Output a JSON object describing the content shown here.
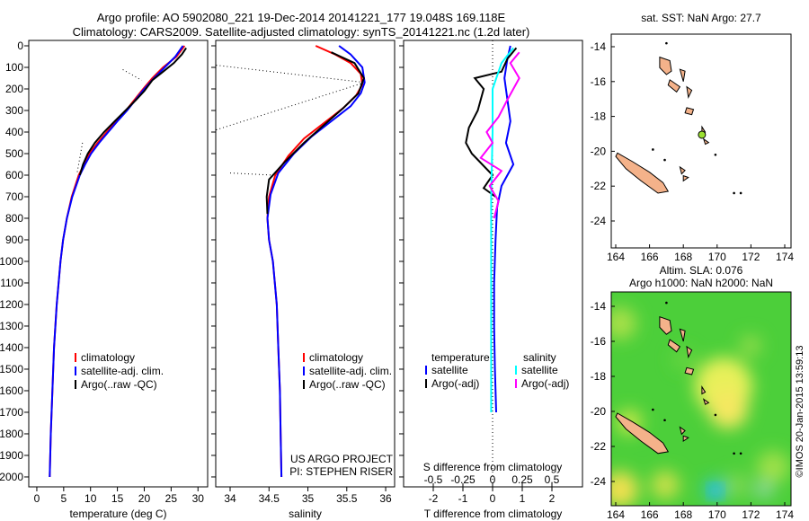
{
  "title": {
    "line1": "Argo profile: AO 5902080_221 19-Dec-2014 20141221_177 19.048S 169.118E",
    "line2": "Climatology: CARS2009. Satellite-adjusted climatology: synTS_20141221.nc (1.2d later)"
  },
  "watermark": "©IMOS 20-Jan-2015 13:59:13",
  "colors": {
    "climatology": "#ff0000",
    "satellite": "#0000ff",
    "argo": "#000000",
    "sal_satellite": "#00ffff",
    "sal_argo": "#ff00ff",
    "land": "#f4b28a",
    "sea_green": "#4ccf3a"
  },
  "chart_data": [
    {
      "id": "temperature",
      "type": "line",
      "xlabel": "temperature (deg C)",
      "xlim": [
        -1.5,
        31.8
      ],
      "ylim": [
        2046,
        -25
      ],
      "xticks": [
        0,
        5,
        10,
        15,
        20,
        25,
        30
      ],
      "yticks": [
        0,
        100,
        200,
        300,
        400,
        500,
        600,
        700,
        800,
        900,
        1000,
        1100,
        1200,
        1300,
        1400,
        1500,
        1600,
        1700,
        1800,
        1900,
        2000
      ],
      "legend": [
        "climatology",
        "satellite-adj. clim.",
        "Argo(..raw -QC)"
      ],
      "series": [
        {
          "name": "climatology",
          "color": "#ff0000",
          "points": [
            [
              27.5,
              0
            ],
            [
              26,
              50
            ],
            [
              23.5,
              100
            ],
            [
              21.5,
              150
            ],
            [
              19.8,
              200
            ],
            [
              18.2,
              250
            ],
            [
              16.6,
              300
            ],
            [
              14.8,
              350
            ],
            [
              13,
              400
            ],
            [
              11.3,
              450
            ],
            [
              9.8,
              500
            ],
            [
              8.8,
              550
            ],
            [
              7.8,
              600
            ],
            [
              6.5,
              700
            ],
            [
              5.6,
              800
            ],
            [
              4.9,
              900
            ],
            [
              4.4,
              1000
            ],
            [
              3.7,
              1200
            ],
            [
              3.2,
              1400
            ],
            [
              2.9,
              1600
            ],
            [
              2.6,
              1800
            ],
            [
              2.4,
              2000
            ]
          ]
        },
        {
          "name": "satellite-adj. clim.",
          "color": "#0000ff",
          "points": [
            [
              27.2,
              0
            ],
            [
              25.8,
              50
            ],
            [
              23.8,
              100
            ],
            [
              21.8,
              150
            ],
            [
              20,
              200
            ],
            [
              18.4,
              250
            ],
            [
              16.8,
              300
            ],
            [
              15,
              350
            ],
            [
              13.3,
              400
            ],
            [
              11.6,
              450
            ],
            [
              10.1,
              500
            ],
            [
              9,
              550
            ],
            [
              8,
              600
            ],
            [
              6.6,
              700
            ],
            [
              5.6,
              800
            ],
            [
              4.9,
              900
            ],
            [
              4.4,
              1000
            ],
            [
              3.7,
              1200
            ],
            [
              3.2,
              1400
            ],
            [
              2.9,
              1600
            ],
            [
              2.6,
              1800
            ],
            [
              2.4,
              2000
            ]
          ]
        },
        {
          "name": "Argo(..raw -QC)",
          "color": "#000000",
          "points": [
            [
              27.8,
              10
            ],
            [
              27,
              40
            ],
            [
              25.5,
              80
            ],
            [
              23.5,
              120
            ],
            [
              21.5,
              160
            ],
            [
              20,
              210
            ],
            [
              18.5,
              250
            ],
            [
              16.5,
              300
            ],
            [
              14.5,
              350
            ],
            [
              12.5,
              400
            ],
            [
              10.8,
              450
            ],
            [
              9.5,
              500
            ],
            [
              8.6,
              550
            ],
            [
              8,
              600
            ]
          ]
        }
      ]
    },
    {
      "id": "salinity",
      "type": "line",
      "xlabel": "salinity",
      "xlim": [
        33.815,
        36.115
      ],
      "ylim": [
        2046,
        -25
      ],
      "xticks": [
        34,
        34.5,
        35,
        35.5,
        36
      ],
      "legend": [
        "climatology",
        "satellite-adj. clim.",
        "Argo(..raw -QC)"
      ],
      "annotation": [
        "US ARGO PROJECT",
        "PI: STEPHEN RISER"
      ],
      "series": [
        {
          "name": "climatology",
          "color": "#ff0000",
          "points": [
            [
              35.1,
              0
            ],
            [
              35.35,
              40
            ],
            [
              35.55,
              80
            ],
            [
              35.68,
              130
            ],
            [
              35.7,
              180
            ],
            [
              35.62,
              230
            ],
            [
              35.45,
              290
            ],
            [
              35.2,
              360
            ],
            [
              34.95,
              430
            ],
            [
              34.75,
              510
            ],
            [
              34.58,
              600
            ],
            [
              34.5,
              700
            ],
            [
              34.48,
              800
            ],
            [
              34.5,
              900
            ],
            [
              34.55,
              1000
            ],
            [
              34.6,
              1200
            ],
            [
              34.62,
              1400
            ],
            [
              34.64,
              1600
            ],
            [
              34.65,
              1800
            ],
            [
              34.66,
              2000
            ]
          ]
        },
        {
          "name": "satellite-adj. clim.",
          "color": "#0000ff",
          "points": [
            [
              35.4,
              0
            ],
            [
              35.55,
              40
            ],
            [
              35.7,
              100
            ],
            [
              35.73,
              170
            ],
            [
              35.68,
              220
            ],
            [
              35.55,
              280
            ],
            [
              35.3,
              350
            ],
            [
              35.05,
              420
            ],
            [
              34.82,
              500
            ],
            [
              34.62,
              590
            ],
            [
              34.52,
              690
            ],
            [
              34.48,
              800
            ],
            [
              34.5,
              900
            ],
            [
              34.55,
              1000
            ],
            [
              34.6,
              1200
            ],
            [
              34.62,
              1400
            ],
            [
              34.64,
              1600
            ],
            [
              34.65,
              1800
            ],
            [
              34.66,
              2000
            ]
          ]
        },
        {
          "name": "Argo(..raw -QC)",
          "color": "#000000",
          "points": [
            [
              35.3,
              30
            ],
            [
              35.6,
              80
            ],
            [
              35.72,
              150
            ],
            [
              35.65,
              220
            ],
            [
              35.45,
              290
            ],
            [
              35.2,
              370
            ],
            [
              34.95,
              450
            ],
            [
              34.7,
              540
            ],
            [
              34.5,
              620
            ],
            [
              34.47,
              700
            ],
            [
              34.48,
              780
            ]
          ]
        }
      ]
    },
    {
      "id": "difference",
      "type": "line",
      "xlabel": "T difference from climatology",
      "xlabel_top": "S difference from climatology",
      "xlim": [
        -3,
        3.03
      ],
      "ylim": [
        2046,
        -25
      ],
      "xticks": [
        -2,
        -1,
        0,
        1,
        2
      ],
      "xticks_top": [
        "-0.5",
        "-0.25",
        "0",
        "0.25",
        "0.5"
      ],
      "legend_headers": [
        "temperature",
        "salinity"
      ],
      "legend": [
        "satellite",
        "Argo(-adj)",
        "satellite",
        "Argo(-adj)"
      ],
      "series": [
        {
          "name": "temperature satellite",
          "color": "#0000ff",
          "points": [
            [
              0.6,
              0
            ],
            [
              0.5,
              60
            ],
            [
              0.4,
              150
            ],
            [
              0.5,
              250
            ],
            [
              0.6,
              350
            ],
            [
              0.45,
              450
            ],
            [
              0.7,
              550
            ],
            [
              0.3,
              650
            ],
            [
              0.15,
              750
            ],
            [
              0.1,
              900
            ],
            [
              0.05,
              1100
            ],
            [
              0.05,
              1300
            ],
            [
              0.08,
              1500
            ],
            [
              0.12,
              1700
            ]
          ]
        },
        {
          "name": "temperature Argo(-adj)",
          "color": "#000000",
          "points": [
            [
              0.8,
              10
            ],
            [
              0.5,
              60
            ],
            [
              0.3,
              120
            ],
            [
              -0.6,
              150
            ],
            [
              -0.3,
              200
            ],
            [
              -0.5,
              300
            ],
            [
              -0.8,
              380
            ],
            [
              -0.9,
              450
            ],
            [
              -0.7,
              500
            ],
            [
              0,
              600
            ],
            [
              -0.3,
              660
            ],
            [
              0.1,
              700
            ]
          ]
        },
        {
          "name": "salinity satellite",
          "color": "#00ffff",
          "points": [
            [
              0.7,
              10
            ],
            [
              0.3,
              80
            ],
            [
              0,
              200
            ],
            [
              0,
              400
            ],
            [
              -0.05,
              700
            ],
            [
              -0.05,
              1000
            ],
            [
              -0.05,
              1300
            ],
            [
              -0.05,
              1700
            ]
          ]
        },
        {
          "name": "salinity Argo(-adj)",
          "color": "#ff00ff",
          "points": [
            [
              0.9,
              30
            ],
            [
              0.6,
              80
            ],
            [
              0.9,
              150
            ],
            [
              0.5,
              250
            ],
            [
              0.2,
              330
            ],
            [
              -0.2,
              400
            ],
            [
              0,
              450
            ],
            [
              -0.4,
              520
            ],
            [
              0.3,
              580
            ],
            [
              -0.1,
              650
            ],
            [
              0.2,
              720
            ],
            [
              0.05,
              800
            ]
          ]
        }
      ]
    },
    {
      "id": "sst-map",
      "type": "heatmap",
      "title": "sat. SST: NaN Argo: 27.7",
      "xticks": [
        164,
        166,
        168,
        170,
        172,
        174
      ],
      "yticks": [
        -14,
        -16,
        -18,
        -20,
        -22,
        -24
      ]
    },
    {
      "id": "sla-map",
      "type": "heatmap",
      "title": "Altim. SLA: 0.076",
      "subtitle": "Argo h1000: NaN h2000: NaN",
      "xticks": [
        164,
        166,
        168,
        170,
        172,
        174
      ],
      "yticks": [
        -14,
        -16,
        -18,
        -20,
        -22,
        -24
      ]
    }
  ]
}
